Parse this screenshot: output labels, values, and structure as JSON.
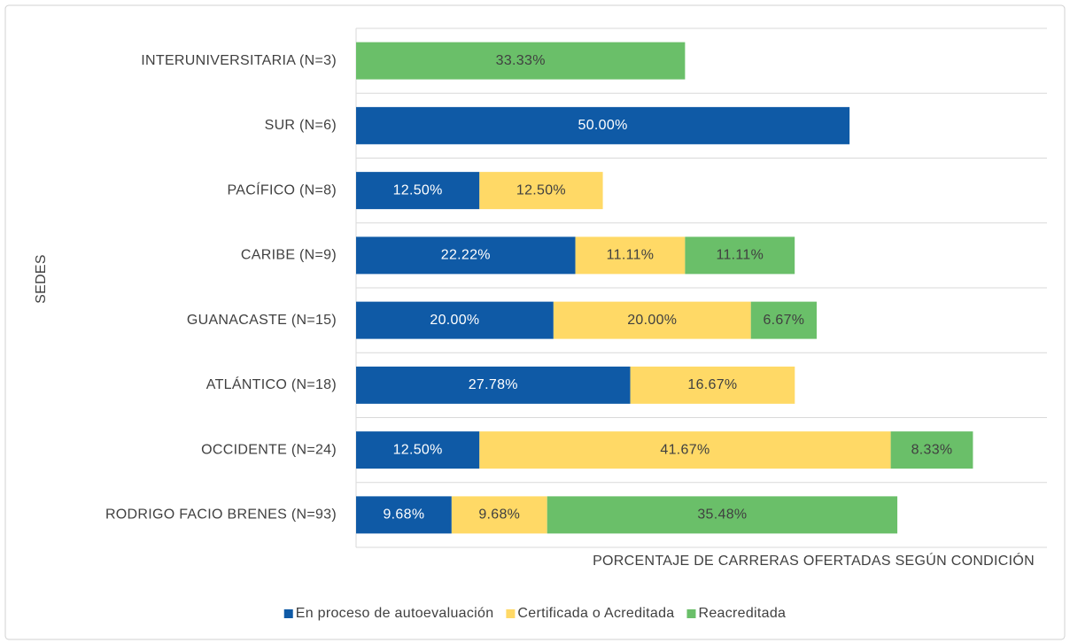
{
  "chart_data": {
    "type": "stacked_barh",
    "x_label": "PORCENTAJE DE CARRERAS OFERTADAS SEGÚN CONDICIÓN",
    "y_label": "SEDES",
    "categories": [
      "INTERUNIVERSITARIA (N=3)",
      "SUR (N=6)",
      "PACÍFICO (N=8)",
      "CARIBE (N=9)",
      "GUANACASTE (N=15)",
      "ATLÁNTICO (N=18)",
      "OCCIDENTE (N=24)",
      "RODRIGO FACIO BRENES (N=93)"
    ],
    "xlim": [
      0,
      70
    ],
    "legend": "bottom",
    "series": [
      {
        "name": "En proceso de autoevaluación",
        "color": "#0f5aa6",
        "values": [
          null,
          50,
          12.5,
          22.22,
          20,
          27.78,
          12.5,
          9.68
        ],
        "value_labels": [
          null,
          "50.00%",
          "12.50%",
          "22.22%",
          "20.00%",
          "27.78%",
          "12.50%",
          "9.68%"
        ]
      },
      {
        "name": "Certificada o Acreditada",
        "color": "#ffd966",
        "values": [
          null,
          null,
          12.5,
          11.11,
          20,
          16.67,
          41.67,
          9.68
        ],
        "value_labels": [
          null,
          null,
          "12.50%",
          "11.11%",
          "20.00%",
          "16.67%",
          "41.67%",
          "9.68%"
        ]
      },
      {
        "name": "Reacreditada",
        "color": "#6abf69",
        "values": [
          33.33,
          null,
          null,
          11.11,
          6.67,
          null,
          8.33,
          35.48
        ],
        "value_labels": [
          "33.33%",
          null,
          null,
          "11.11%",
          "6.67%",
          null,
          "8.33%",
          "35.48%"
        ]
      }
    ]
  }
}
